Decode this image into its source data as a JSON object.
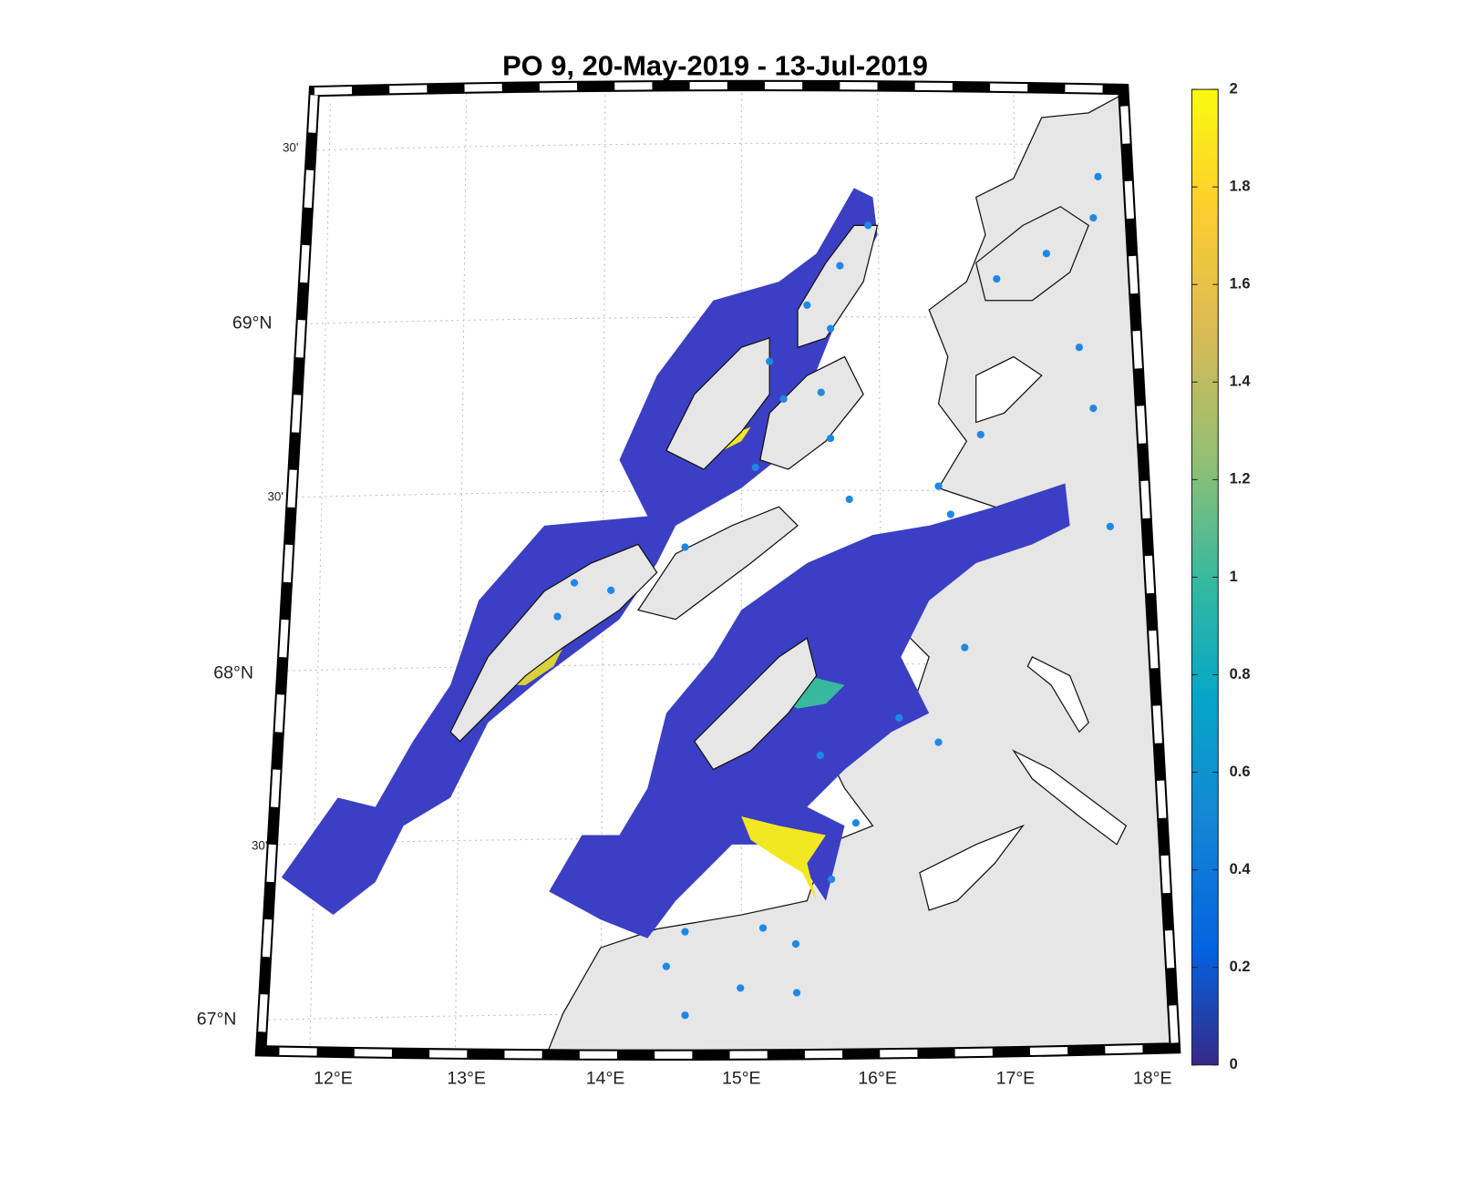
{
  "title": "PO 9, 20-May-2019  - 13-Jul-2019",
  "map": {
    "lon_labels": [
      "12°E",
      "13°E",
      "14°E",
      "15°E",
      "16°E",
      "17°E",
      "18°E"
    ],
    "lat_labels": [
      "69°N",
      "30'",
      "68°N",
      "30'",
      "67°N",
      "30'"
    ]
  },
  "colorbar": {
    "lim": [
      0,
      2
    ],
    "ticks": [
      0,
      0.2,
      0.4,
      0.6,
      0.8,
      1,
      1.2,
      1.4,
      1.6,
      1.8,
      2
    ]
  }
}
